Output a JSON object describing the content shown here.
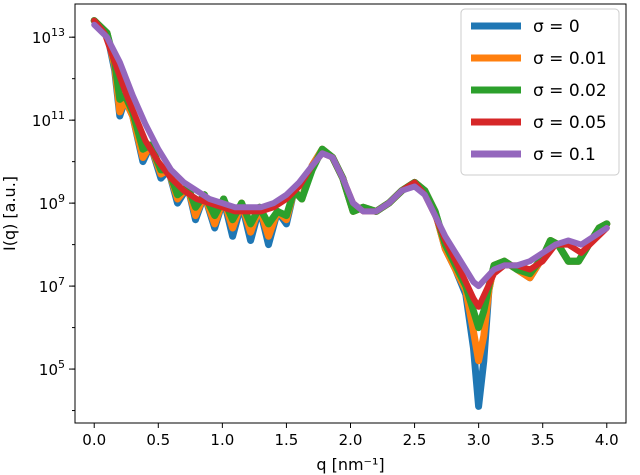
{
  "chart_data": {
    "type": "line",
    "xlabel": "q [nm⁻¹]",
    "ylabel": "I(q) [a.u.]",
    "xlim": [
      -0.15,
      4.15
    ],
    "ylim_log10": [
      3.7,
      13.8
    ],
    "y_scale": "log",
    "grid": false,
    "legend_position": "top-right",
    "x_ticks": [
      "0.0",
      "0.5",
      "1.0",
      "1.5",
      "2.0",
      "2.5",
      "3.0",
      "3.5",
      "4.0"
    ],
    "y_ticks": [
      {
        "value_log10": 13,
        "label": "10",
        "exp": "13"
      },
      {
        "value_log10": 11,
        "label": "10",
        "exp": "11"
      },
      {
        "value_log10": 9,
        "label": "10",
        "exp": "9"
      },
      {
        "value_log10": 7,
        "label": "10",
        "exp": "7"
      },
      {
        "value_log10": 5,
        "label": "10",
        "exp": "5"
      }
    ],
    "series": [
      {
        "name": "σ = 0",
        "color": "#1f77b4",
        "x": [
          0.0,
          0.1,
          0.16,
          0.2,
          0.24,
          0.3,
          0.38,
          0.44,
          0.52,
          0.58,
          0.65,
          0.73,
          0.79,
          0.86,
          0.94,
          1.01,
          1.08,
          1.15,
          1.22,
          1.29,
          1.36,
          1.43,
          1.5,
          1.56,
          1.62,
          1.7,
          1.78,
          1.86,
          1.94,
          2.02,
          2.1,
          2.2,
          2.3,
          2.4,
          2.5,
          2.58,
          2.66,
          2.74,
          2.82,
          2.9,
          2.96,
          3.0,
          3.04,
          3.08,
          3.12,
          3.2,
          3.3,
          3.4,
          3.5,
          3.56,
          3.62,
          3.7,
          3.78,
          3.86,
          3.94,
          4.0
        ],
        "y": [
          13.4,
          13.1,
          12.2,
          11.1,
          11.5,
          11.1,
          10.0,
          10.4,
          9.6,
          9.8,
          9.0,
          9.4,
          8.6,
          9.2,
          8.4,
          9.1,
          8.2,
          9.0,
          8.1,
          8.9,
          8.0,
          8.8,
          8.5,
          9.3,
          9.1,
          9.9,
          10.3,
          10.1,
          9.6,
          8.8,
          8.9,
          8.8,
          9.0,
          9.3,
          9.5,
          9.3,
          8.8,
          7.9,
          7.4,
          6.8,
          5.5,
          4.1,
          5.2,
          6.9,
          7.5,
          7.6,
          7.4,
          7.2,
          7.7,
          8.1,
          8.0,
          7.6,
          7.6,
          8.0,
          8.4,
          8.5
        ]
      },
      {
        "name": "σ = 0.01",
        "color": "#ff7f0e",
        "x": [
          0.0,
          0.1,
          0.16,
          0.2,
          0.24,
          0.3,
          0.38,
          0.44,
          0.52,
          0.58,
          0.65,
          0.73,
          0.79,
          0.86,
          0.94,
          1.01,
          1.08,
          1.15,
          1.22,
          1.29,
          1.36,
          1.43,
          1.5,
          1.56,
          1.62,
          1.7,
          1.78,
          1.86,
          1.94,
          2.02,
          2.1,
          2.2,
          2.3,
          2.4,
          2.5,
          2.58,
          2.66,
          2.74,
          2.82,
          2.9,
          2.96,
          3.0,
          3.04,
          3.08,
          3.12,
          3.2,
          3.3,
          3.4,
          3.5,
          3.56,
          3.62,
          3.7,
          3.78,
          3.86,
          3.94,
          4.0
        ],
        "y": [
          13.4,
          13.1,
          12.3,
          11.2,
          11.5,
          11.1,
          10.1,
          10.4,
          9.7,
          9.8,
          9.1,
          9.4,
          8.7,
          9.2,
          8.5,
          9.1,
          8.4,
          9.0,
          8.3,
          8.9,
          8.2,
          8.8,
          8.6,
          9.3,
          9.1,
          9.9,
          10.3,
          10.1,
          9.6,
          8.8,
          8.9,
          8.8,
          9.0,
          9.3,
          9.5,
          9.3,
          8.8,
          7.9,
          7.4,
          6.9,
          5.9,
          5.2,
          5.8,
          6.9,
          7.5,
          7.6,
          7.4,
          7.2,
          7.7,
          8.1,
          8.0,
          7.6,
          7.6,
          8.0,
          8.4,
          8.5
        ]
      },
      {
        "name": "σ = 0.02",
        "color": "#2ca02c",
        "x": [
          0.0,
          0.1,
          0.16,
          0.2,
          0.24,
          0.3,
          0.38,
          0.44,
          0.52,
          0.58,
          0.65,
          0.73,
          0.79,
          0.86,
          0.94,
          1.01,
          1.08,
          1.15,
          1.22,
          1.29,
          1.36,
          1.43,
          1.5,
          1.56,
          1.62,
          1.7,
          1.78,
          1.86,
          1.94,
          2.02,
          2.1,
          2.2,
          2.3,
          2.4,
          2.5,
          2.58,
          2.66,
          2.74,
          2.82,
          2.9,
          2.96,
          3.0,
          3.04,
          3.08,
          3.12,
          3.2,
          3.3,
          3.4,
          3.5,
          3.56,
          3.62,
          3.7,
          3.78,
          3.86,
          3.94,
          4.0
        ],
        "y": [
          13.4,
          13.1,
          12.4,
          11.5,
          11.6,
          11.2,
          10.3,
          10.4,
          9.8,
          9.8,
          9.2,
          9.4,
          8.9,
          9.2,
          8.7,
          9.1,
          8.6,
          9.0,
          8.5,
          8.9,
          8.5,
          8.8,
          8.7,
          9.3,
          9.1,
          9.8,
          10.3,
          10.1,
          9.6,
          8.8,
          8.9,
          8.8,
          9.0,
          9.3,
          9.5,
          9.3,
          8.8,
          8.0,
          7.5,
          7.0,
          6.4,
          6.0,
          6.4,
          7.0,
          7.5,
          7.6,
          7.4,
          7.3,
          7.7,
          8.1,
          8.0,
          7.6,
          7.6,
          8.0,
          8.4,
          8.5
        ]
      },
      {
        "name": "σ = 0.05",
        "color": "#d62728",
        "x": [
          0.0,
          0.08,
          0.16,
          0.24,
          0.32,
          0.4,
          0.5,
          0.6,
          0.7,
          0.8,
          0.9,
          1.0,
          1.1,
          1.2,
          1.3,
          1.4,
          1.5,
          1.6,
          1.7,
          1.78,
          1.86,
          1.94,
          2.02,
          2.1,
          2.2,
          2.3,
          2.4,
          2.5,
          2.58,
          2.66,
          2.74,
          2.82,
          2.9,
          2.96,
          3.0,
          3.06,
          3.12,
          3.2,
          3.3,
          3.4,
          3.5,
          3.6,
          3.7,
          3.8,
          3.9,
          4.0
        ],
        "y": [
          13.4,
          13.1,
          12.4,
          11.7,
          11.1,
          10.5,
          10.0,
          9.6,
          9.3,
          9.1,
          9.0,
          8.9,
          8.8,
          8.8,
          8.8,
          8.9,
          9.1,
          9.4,
          9.9,
          10.2,
          10.1,
          9.6,
          9.0,
          8.8,
          8.8,
          9.0,
          9.3,
          9.5,
          9.2,
          8.7,
          8.1,
          7.6,
          7.1,
          6.7,
          6.5,
          6.9,
          7.3,
          7.5,
          7.5,
          7.4,
          7.6,
          8.0,
          8.0,
          7.8,
          8.1,
          8.4
        ]
      },
      {
        "name": "σ = 0.1",
        "color": "#9467bd",
        "x": [
          0.0,
          0.1,
          0.2,
          0.3,
          0.4,
          0.5,
          0.6,
          0.7,
          0.8,
          0.9,
          1.0,
          1.1,
          1.2,
          1.3,
          1.4,
          1.5,
          1.6,
          1.7,
          1.78,
          1.86,
          1.94,
          2.02,
          2.1,
          2.2,
          2.3,
          2.4,
          2.5,
          2.58,
          2.66,
          2.74,
          2.82,
          2.9,
          2.96,
          3.0,
          3.06,
          3.12,
          3.2,
          3.3,
          3.4,
          3.5,
          3.6,
          3.7,
          3.8,
          3.9,
          4.0
        ],
        "y": [
          13.3,
          13.0,
          12.4,
          11.6,
          10.9,
          10.3,
          9.8,
          9.5,
          9.3,
          9.1,
          9.0,
          8.9,
          8.9,
          8.9,
          9.0,
          9.2,
          9.5,
          9.9,
          10.2,
          10.1,
          9.6,
          9.0,
          8.8,
          8.8,
          9.0,
          9.3,
          9.4,
          9.2,
          8.7,
          8.2,
          7.8,
          7.4,
          7.1,
          7.0,
          7.2,
          7.4,
          7.5,
          7.5,
          7.6,
          7.8,
          8.0,
          8.1,
          8.0,
          8.2,
          8.4
        ]
      }
    ]
  }
}
